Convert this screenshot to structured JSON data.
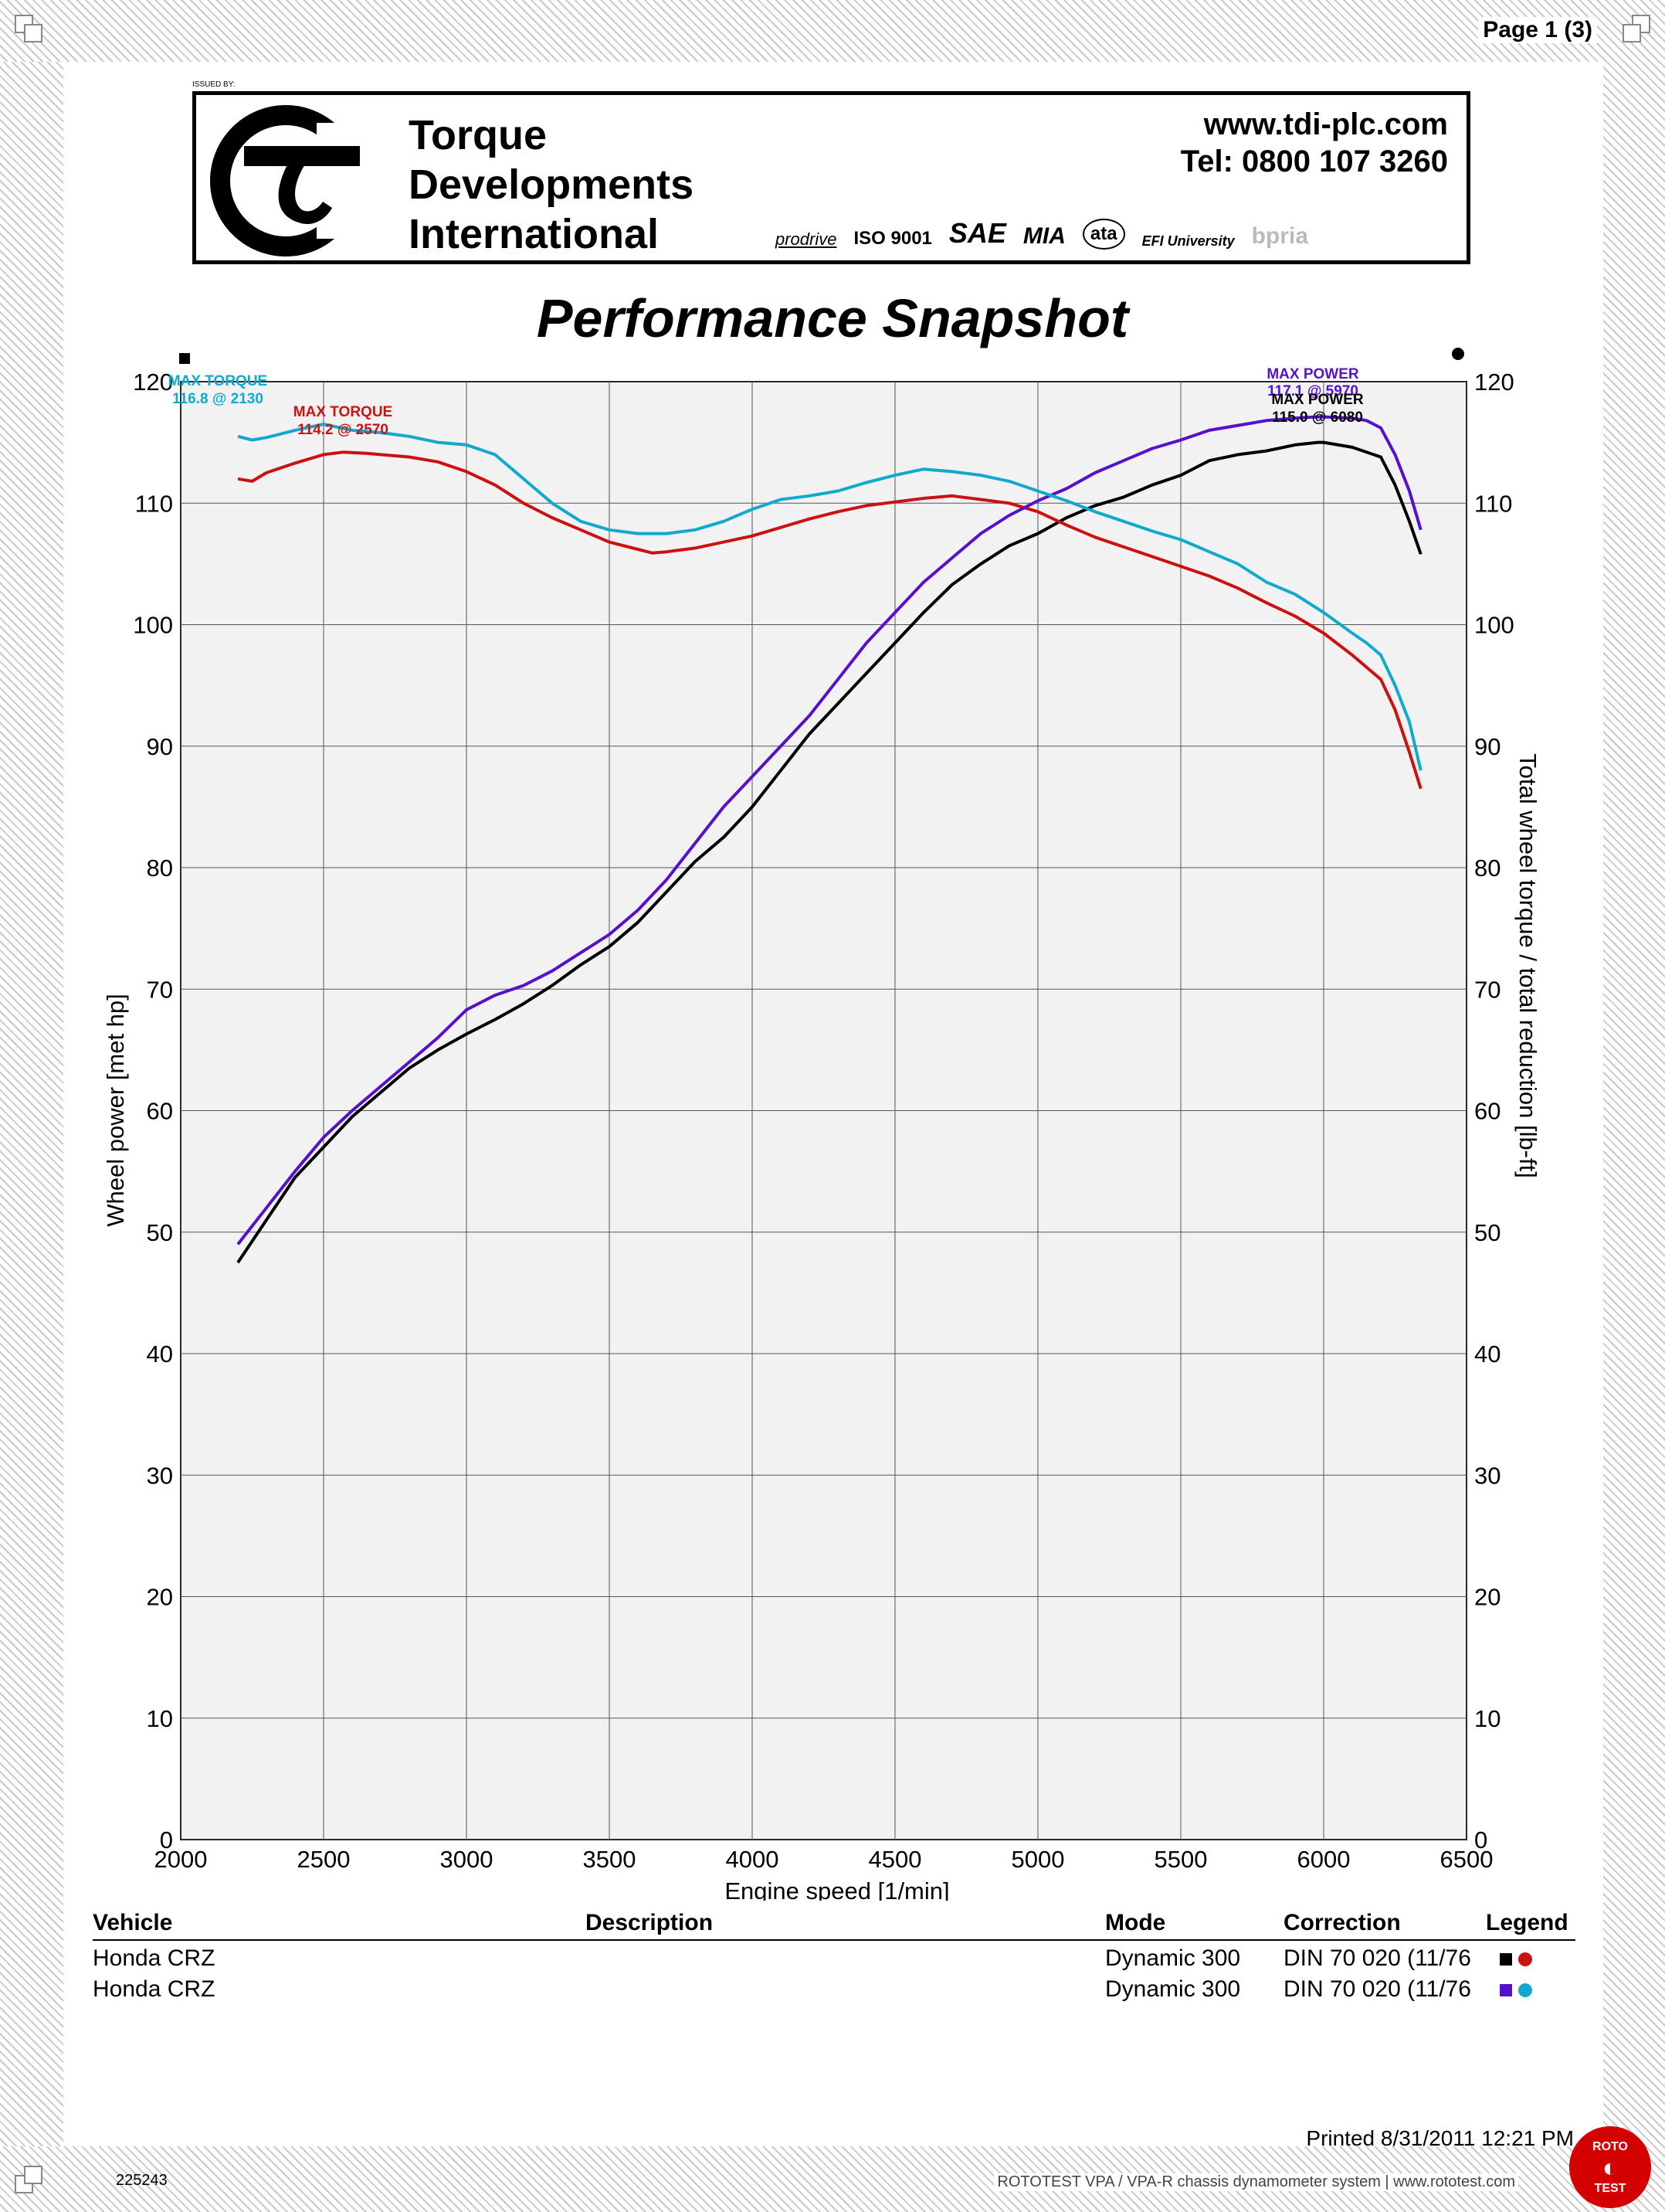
{
  "page": {
    "page_number": "Page 1 (3)",
    "issued_by": "ISSUED BY:"
  },
  "header": {
    "company_lines": [
      "Torque",
      "Developments",
      "International"
    ],
    "website": "www.tdi-plc.com",
    "tel": "Tel: 0800 107 3260",
    "certifications": [
      "prodrive",
      "ISO 9001",
      "SAE",
      "MIA",
      "ata",
      "EFI University",
      "bpria"
    ]
  },
  "report_title": "Performance Snapshot",
  "chart_data": {
    "type": "line",
    "title": "Performance Snapshot",
    "xlabel": "Engine speed [1/min]",
    "ylabel": "Wheel power [met hp]",
    "ylabel_right": "Total wheel torque / total reduction [lb-ft]",
    "xlim": [
      2000,
      6500
    ],
    "ylim": [
      0,
      120
    ],
    "ylim_right": [
      0,
      120
    ],
    "x_ticks": [
      2000,
      2500,
      3000,
      3500,
      4000,
      4500,
      5000,
      5500,
      6000,
      6500
    ],
    "y_ticks": [
      0,
      10,
      20,
      30,
      40,
      50,
      60,
      70,
      80,
      90,
      100,
      110,
      120
    ],
    "grid": true,
    "series": [
      {
        "color": "#000000",
        "axis": "left",
        "x": [
          2200,
          2300,
          2400,
          2500,
          2600,
          2700,
          2800,
          2900,
          3000,
          3100,
          3200,
          3300,
          3400,
          3500,
          3600,
          3700,
          3800,
          3900,
          4000,
          4100,
          4200,
          4300,
          4400,
          4500,
          4600,
          4700,
          4800,
          4900,
          5000,
          5100,
          5200,
          5300,
          5400,
          5500,
          5600,
          5700,
          5800,
          5900,
          5980,
          6000,
          6100,
          6200,
          6250,
          6300,
          6340
        ],
        "y": [
          47.5,
          51,
          54.5,
          57,
          59.5,
          61.5,
          63.5,
          65,
          66.3,
          67.5,
          68.8,
          70.3,
          72,
          73.5,
          75.5,
          78,
          80.5,
          82.5,
          85,
          88,
          91,
          93.5,
          96,
          98.5,
          101,
          103.3,
          105,
          106.5,
          107.5,
          108.8,
          109.8,
          110.5,
          111.5,
          112.3,
          113.5,
          114,
          114.3,
          114.8,
          115,
          115,
          114.6,
          113.8,
          111.5,
          108.5,
          105.8
        ]
      },
      {
        "color": "#cc1111",
        "axis": "right",
        "x": [
          2200,
          2250,
          2300,
          2400,
          2500,
          2570,
          2650,
          2700,
          2800,
          2900,
          3000,
          3100,
          3200,
          3300,
          3400,
          3500,
          3600,
          3650,
          3700,
          3800,
          3900,
          4000,
          4100,
          4200,
          4300,
          4400,
          4500,
          4600,
          4700,
          4800,
          4900,
          5000,
          5100,
          5200,
          5300,
          5400,
          5500,
          5600,
          5700,
          5800,
          5900,
          6000,
          6100,
          6200,
          6250,
          6300,
          6340
        ],
        "y": [
          112,
          111.8,
          112.5,
          113.3,
          114,
          114.2,
          114.1,
          114,
          113.8,
          113.4,
          112.6,
          111.5,
          110,
          108.8,
          107.8,
          106.8,
          106.2,
          105.9,
          106,
          106.3,
          106.8,
          107.3,
          108,
          108.7,
          109.3,
          109.8,
          110.1,
          110.4,
          110.6,
          110.3,
          110,
          109.3,
          108.2,
          107.2,
          106.4,
          105.6,
          104.8,
          104,
          103,
          101.8,
          100.7,
          99.3,
          97.5,
          95.5,
          93,
          89.5,
          86.5
        ]
      },
      {
        "color": "#5511cc",
        "axis": "left",
        "x": [
          2200,
          2300,
          2400,
          2500,
          2600,
          2700,
          2800,
          2900,
          3000,
          3100,
          3200,
          3300,
          3400,
          3500,
          3600,
          3700,
          3800,
          3900,
          4000,
          4100,
          4200,
          4300,
          4400,
          4500,
          4600,
          4700,
          4800,
          4900,
          5000,
          5100,
          5200,
          5300,
          5400,
          5500,
          5600,
          5700,
          5800,
          5900,
          5970,
          6000,
          6100,
          6150,
          6200,
          6250,
          6300,
          6340
        ],
        "y": [
          49,
          52,
          55,
          57.8,
          60,
          62,
          64,
          66,
          68.3,
          69.5,
          70.3,
          71.5,
          73,
          74.5,
          76.5,
          79,
          82,
          85,
          87.5,
          90,
          92.5,
          95.5,
          98.5,
          101,
          103.5,
          105.5,
          107.5,
          109,
          110.2,
          111.2,
          112.5,
          113.5,
          114.5,
          115.2,
          116,
          116.4,
          116.8,
          117,
          117.1,
          117.1,
          117,
          116.8,
          116.2,
          114,
          111,
          107.8
        ]
      },
      {
        "color": "#11aacc",
        "axis": "right",
        "x": [
          2200,
          2250,
          2300,
          2400,
          2500,
          2600,
          2700,
          2800,
          2900,
          3000,
          3100,
          3200,
          3300,
          3400,
          3500,
          3600,
          3700,
          3800,
          3900,
          4000,
          4100,
          4200,
          4300,
          4400,
          4500,
          4600,
          4700,
          4800,
          4900,
          5000,
          5100,
          5200,
          5300,
          5400,
          5500,
          5600,
          5700,
          5800,
          5900,
          6000,
          6100,
          6150,
          6200,
          6250,
          6300,
          6340
        ],
        "y": [
          115.5,
          115.2,
          115.4,
          116,
          116.5,
          116,
          115.8,
          115.5,
          115,
          114.8,
          114,
          112,
          110,
          108.5,
          107.8,
          107.5,
          107.5,
          107.8,
          108.5,
          109.5,
          110.3,
          110.6,
          111,
          111.7,
          112.3,
          112.8,
          112.6,
          112.3,
          111.8,
          111,
          110.2,
          109.3,
          108.5,
          107.7,
          107,
          106,
          105,
          103.5,
          102.5,
          101,
          99.3,
          98.5,
          97.5,
          95,
          92,
          88
        ]
      }
    ],
    "annotations": [
      {
        "text": "MAX TORQUE",
        "color": "#11aacc"
      },
      {
        "text": "116.8 @ 2130",
        "color": "#11aacc"
      },
      {
        "text": "MAX TORQUE",
        "color": "#cc1111"
      },
      {
        "text": "114.2 @ 2570",
        "color": "#cc1111"
      },
      {
        "text": "MAX POWER",
        "color": "#5511cc"
      },
      {
        "text": "117.1 @ 5970",
        "color": "#5511cc"
      },
      {
        "text": "MAX POWER",
        "color": "#000000"
      },
      {
        "text": "115.0 @ 6080",
        "color": "#000000"
      }
    ]
  },
  "table": {
    "headers": {
      "vehicle": "Vehicle",
      "description": "Description",
      "mode": "Mode",
      "correction": "Correction",
      "legend": "Legend"
    },
    "rows": [
      {
        "vehicle": "Honda  CRZ",
        "description": "",
        "mode": "Dynamic 300",
        "correction": "DIN 70 020 (11/76",
        "legend_square": "#000000",
        "legend_dot": "#cc1111"
      },
      {
        "vehicle": "Honda  CRZ",
        "description": "",
        "mode": "Dynamic 300",
        "correction": "DIN 70 020 (11/76",
        "legend_square": "#5511cc",
        "legend_dot": "#11aacc"
      }
    ]
  },
  "footer": {
    "printed": "Printed 8/31/2011 12:21 PM",
    "id": "225243",
    "system": "ROTOTEST VPA / VPA-R chassis dynamometer system | www.rototest.com",
    "badge": [
      "ROTO",
      "TEST"
    ]
  }
}
